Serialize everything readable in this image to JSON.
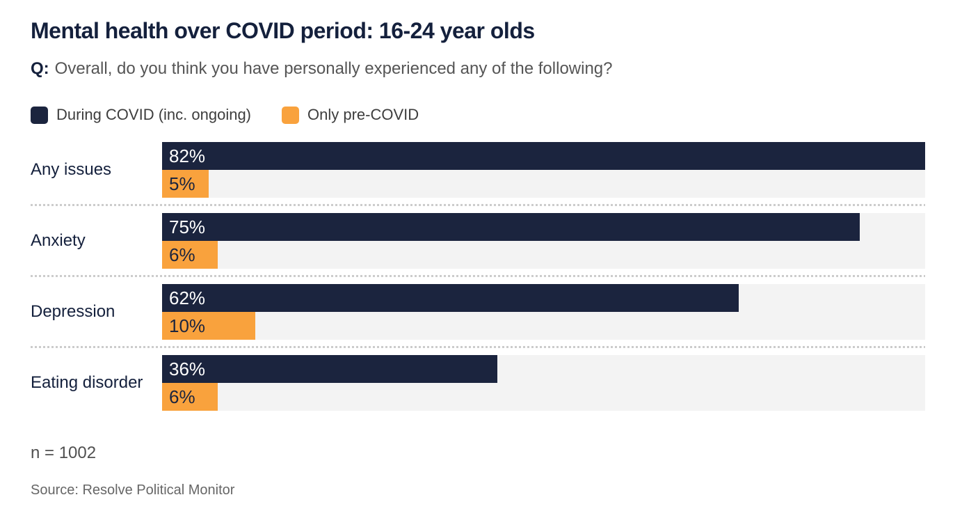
{
  "title": "Mental health over COVID period: 16-24 year olds",
  "question": {
    "prefix": "Q:",
    "text": "Overall, do you think you have personally experienced any of the following?"
  },
  "chart_data": {
    "type": "bar",
    "orientation": "horizontal",
    "title": "Mental health over COVID period: 16-24 year olds",
    "categories": [
      "Any issues",
      "Anxiety",
      "Depression",
      "Eating disorder"
    ],
    "series": [
      {
        "name": "During COVID (inc. ongoing)",
        "color": "#1b243e",
        "label_color": "#ffffff",
        "values": [
          82,
          75,
          62,
          36
        ]
      },
      {
        "name": "Only pre-COVID",
        "color": "#f9a23d",
        "label_color": "#1b243e",
        "values": [
          5,
          6,
          10,
          6
        ]
      }
    ],
    "value_suffix": "%",
    "xlim": [
      0,
      82
    ],
    "grid": false,
    "legend_position": "top",
    "track_color": "#f3f3f3"
  },
  "footnotes": {
    "sample": "n = 1002",
    "source": "Source: Resolve Political Monitor"
  },
  "colors": {
    "title_navy": "#14203c",
    "during_covid_navy": "#1b243e",
    "pre_covid_orange": "#f9a23d",
    "bar_track_gray": "#f3f3f3",
    "separator_gray": "#cccccc",
    "question_gray": "#555555",
    "source_gray": "#666666"
  }
}
